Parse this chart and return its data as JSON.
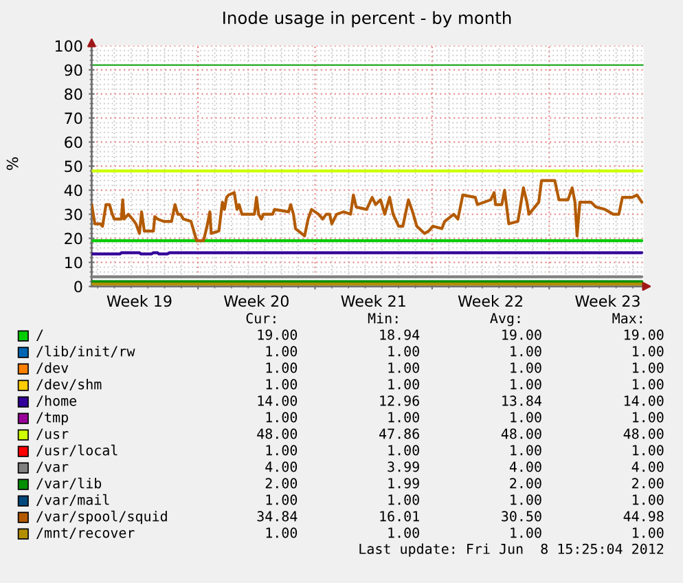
{
  "chart_data": {
    "type": "line",
    "title": "Inode usage in percent - by month",
    "ylabel": "%",
    "xlim": [
      "2012-05-06T15:25",
      "2012-06-08T15:25"
    ],
    "xticks": [
      {
        "value": "2012-05-09T12:00",
        "label": "Week 19"
      },
      {
        "value": "2012-05-13T00:00",
        "label": null
      },
      {
        "value": "2012-05-16T12:00",
        "label": "Week 20"
      },
      {
        "value": "2012-05-20T00:00",
        "label": null
      },
      {
        "value": "2012-05-23T12:00",
        "label": "Week 21"
      },
      {
        "value": "2012-05-27T00:00",
        "label": null
      },
      {
        "value": "2012-05-30T12:00",
        "label": "Week 22"
      },
      {
        "value": "2012-06-03T00:00",
        "label": null
      },
      {
        "value": "2012-06-06T12:00",
        "label": "Week 23"
      }
    ],
    "ylim": [
      0,
      100
    ],
    "yticks": [
      0,
      10,
      20,
      30,
      40,
      50,
      60,
      70,
      80,
      90,
      100
    ],
    "grid": true,
    "legend": "bottom",
    "ref_lines": [
      {
        "axis": "y",
        "value": 92,
        "color": "#22aa22"
      }
    ],
    "series": [
      {
        "name": "/",
        "color": "#00cc00",
        "x": [
          "2012-05-06T15:25",
          "2012-06-08T13:00"
        ],
        "values": [
          19,
          19
        ]
      },
      {
        "name": "/lib/init/rw",
        "color": "#0066b3",
        "values": [
          null,
          null
        ]
      },
      {
        "name": "/dev",
        "color": "#ff8000",
        "values": [
          null,
          null
        ]
      },
      {
        "name": "/dev/shm",
        "color": "#ffcc00",
        "values": [
          null,
          null
        ]
      },
      {
        "name": "/home",
        "color": "#330099",
        "x": [
          "2012-05-06T15:25",
          "2012-05-08T08:00",
          "2012-05-08T10:00",
          "2012-05-09T12:00",
          "2012-05-09T14:00",
          "2012-05-10T05:00",
          "2012-05-10T08:00",
          "2012-05-10T14:00",
          "2012-05-10T16:00",
          "2012-05-11T04:00",
          "2012-05-11T07:00",
          "2012-06-08T13:00"
        ],
        "values": [
          13.5,
          13.5,
          14,
          14,
          13.5,
          13.5,
          14,
          14,
          13.5,
          13.5,
          14,
          14
        ]
      },
      {
        "name": "/tmp",
        "color": "#990099",
        "values": [
          null,
          null
        ]
      },
      {
        "name": "/usr",
        "color": "#ccff00",
        "x": [
          "2012-05-06T15:25",
          "2012-06-08T13:00"
        ],
        "values": [
          48,
          48
        ]
      },
      {
        "name": "/usr/local",
        "color": "#ff0000",
        "values": [
          null,
          null
        ]
      },
      {
        "name": "/var",
        "color": "#808080",
        "x": [
          "2012-05-06T15:25",
          "2012-06-08T13:00"
        ],
        "values": [
          4,
          4
        ]
      },
      {
        "name": "/var/lib",
        "color": "#008f00",
        "x": [
          "2012-05-06T15:25",
          "2012-06-08T13:00"
        ],
        "values": [
          2,
          2
        ]
      },
      {
        "name": "/var/mail",
        "color": "#00487d",
        "values": [
          null,
          null
        ]
      },
      {
        "name": "/var/spool/squid",
        "color": "#b35a00",
        "x": [
          "2012-05-06T15:25",
          "2012-05-06T20:00",
          "2012-05-07T04:00",
          "2012-05-07T07:00",
          "2012-05-07T12:00",
          "2012-05-07T17:00",
          "2012-05-07T21:00",
          "2012-05-08T00:00",
          "2012-05-08T10:00",
          "2012-05-08T12:00",
          "2012-05-08T14:00",
          "2012-05-08T20:00",
          "2012-05-09T02:00",
          "2012-05-09T07:00",
          "2012-05-09T12:00",
          "2012-05-09T15:00",
          "2012-05-09T19:00",
          "2012-05-10T08:00",
          "2012-05-10T10:00",
          "2012-05-10T14:00",
          "2012-05-10T23:00",
          "2012-05-11T10:00",
          "2012-05-11T15:00",
          "2012-05-11T19:00",
          "2012-05-11T23:00",
          "2012-05-12T03:00",
          "2012-05-12T14:00",
          "2012-05-12T19:00",
          "2012-05-12T22:00",
          "2012-05-13T08:00",
          "2012-05-13T13:00",
          "2012-05-13T17:00",
          "2012-05-13T19:00",
          "2012-05-14T06:00",
          "2012-05-14T11:00",
          "2012-05-14T14:00",
          "2012-05-14T17:00",
          "2012-05-14T20:00",
          "2012-05-15T04:00",
          "2012-05-15T08:00",
          "2012-05-15T11:00",
          "2012-05-15T15:00",
          "2012-05-16T09:00",
          "2012-05-16T12:00",
          "2012-05-16T15:00",
          "2012-05-16T19:00",
          "2012-05-16T22:00",
          "2012-05-17T11:00",
          "2012-05-17T14:00",
          "2012-05-18T10:00",
          "2012-05-18T13:00",
          "2012-05-18T17:00",
          "2012-05-18T20:00",
          "2012-05-19T09:00",
          "2012-05-19T14:00",
          "2012-05-19T19:00",
          "2012-05-20T05:00",
          "2012-05-20T11:00",
          "2012-05-20T16:00",
          "2012-05-20T21:00",
          "2012-05-21T00:00",
          "2012-05-21T07:00",
          "2012-05-21T17:00",
          "2012-05-22T03:00",
          "2012-05-22T07:00",
          "2012-05-22T11:00",
          "2012-05-23T02:00",
          "2012-05-23T10:00",
          "2012-05-23T15:00",
          "2012-05-23T22:00",
          "2012-05-24T04:00",
          "2012-05-24T11:00",
          "2012-05-24T16:00",
          "2012-05-25T00:00",
          "2012-05-25T06:00",
          "2012-05-25T14:00",
          "2012-05-25T20:00",
          "2012-05-26T02:00",
          "2012-05-26T13:00",
          "2012-05-26T19:00",
          "2012-05-27T01:00",
          "2012-05-27T14:00",
          "2012-05-27T18:00",
          "2012-05-28T07:00",
          "2012-05-28T13:00",
          "2012-05-28T20:00",
          "2012-05-29T14:00",
          "2012-05-29T17:00",
          "2012-05-30T12:00",
          "2012-05-30T17:00",
          "2012-05-30T19:00",
          "2012-05-31T04:00",
          "2012-05-31T08:00",
          "2012-05-31T14:00",
          "2012-06-01T03:00",
          "2012-06-01T06:00",
          "2012-06-01T11:00",
          "2012-06-01T16:00",
          "2012-06-01T19:00",
          "2012-06-02T09:00",
          "2012-06-02T13:00",
          "2012-06-03T08:00",
          "2012-06-03T14:00",
          "2012-06-04T03:00",
          "2012-06-04T09:00",
          "2012-06-04T13:00",
          "2012-06-04T16:00",
          "2012-06-04T20:00",
          "2012-06-05T12:00",
          "2012-06-05T19:00",
          "2012-06-06T08:00",
          "2012-06-06T20:00",
          "2012-06-07T04:00",
          "2012-06-07T09:00",
          "2012-06-07T23:00",
          "2012-06-08T06:00",
          "2012-06-08T13:00"
        ],
        "values": [
          34,
          26,
          26,
          25,
          34,
          34,
          30,
          28,
          28,
          36,
          28,
          30,
          28,
          26,
          22,
          31,
          23,
          23,
          29,
          28,
          27,
          27,
          34,
          30,
          30,
          28,
          27,
          22,
          19,
          19,
          25,
          31,
          22,
          23,
          35,
          32,
          37,
          38,
          39,
          32,
          34,
          30,
          30,
          37,
          30,
          28,
          30,
          30,
          32,
          31,
          34,
          30,
          24,
          21,
          28,
          32,
          30,
          28,
          30,
          30,
          26,
          30,
          31,
          30,
          38,
          33,
          32,
          37,
          34,
          36,
          30,
          37,
          30,
          25,
          25,
          36,
          31,
          25,
          22,
          23,
          25,
          24,
          27,
          30,
          28,
          38,
          37,
          34,
          36,
          39,
          34,
          34,
          40,
          26,
          27,
          32,
          41,
          35,
          30,
          35,
          44,
          44,
          36,
          36,
          41,
          35,
          21,
          35,
          35,
          33,
          32,
          30,
          30,
          37,
          37,
          38,
          35
        ]
      },
      {
        "name": "/mnt/recover",
        "color": "#b38f00",
        "x": [
          "2012-05-06T15:25",
          "2012-06-08T13:00"
        ],
        "values": [
          1,
          1
        ]
      }
    ],
    "annotations": [
      "Cur:",
      "Min:",
      "Avg:",
      "Max:",
      "19.00",
      "18.94",
      "19.00",
      "19.00",
      "1.00",
      "1.00",
      "1.00",
      "1.00",
      "1.00",
      "1.00",
      "1.00",
      "1.00",
      "1.00",
      "1.00",
      "1.00",
      "1.00",
      "14.00",
      "12.96",
      "13.84",
      "14.00",
      "1.00",
      "1.00",
      "1.00",
      "1.00",
      "48.00",
      "47.86",
      "48.00",
      "48.00",
      "1.00",
      "1.00",
      "1.00",
      "1.00",
      "4.00",
      "3.99",
      "4.00",
      "4.00",
      "2.00",
      "1.99",
      "2.00",
      "2.00",
      "1.00",
      "1.00",
      "1.00",
      "1.00",
      "34.84",
      "16.01",
      "30.50",
      "44.98",
      "1.00",
      "1.00",
      "1.00",
      "1.00",
      "Last update: Fri Jun  8 15:25:04 2012"
    ]
  }
}
